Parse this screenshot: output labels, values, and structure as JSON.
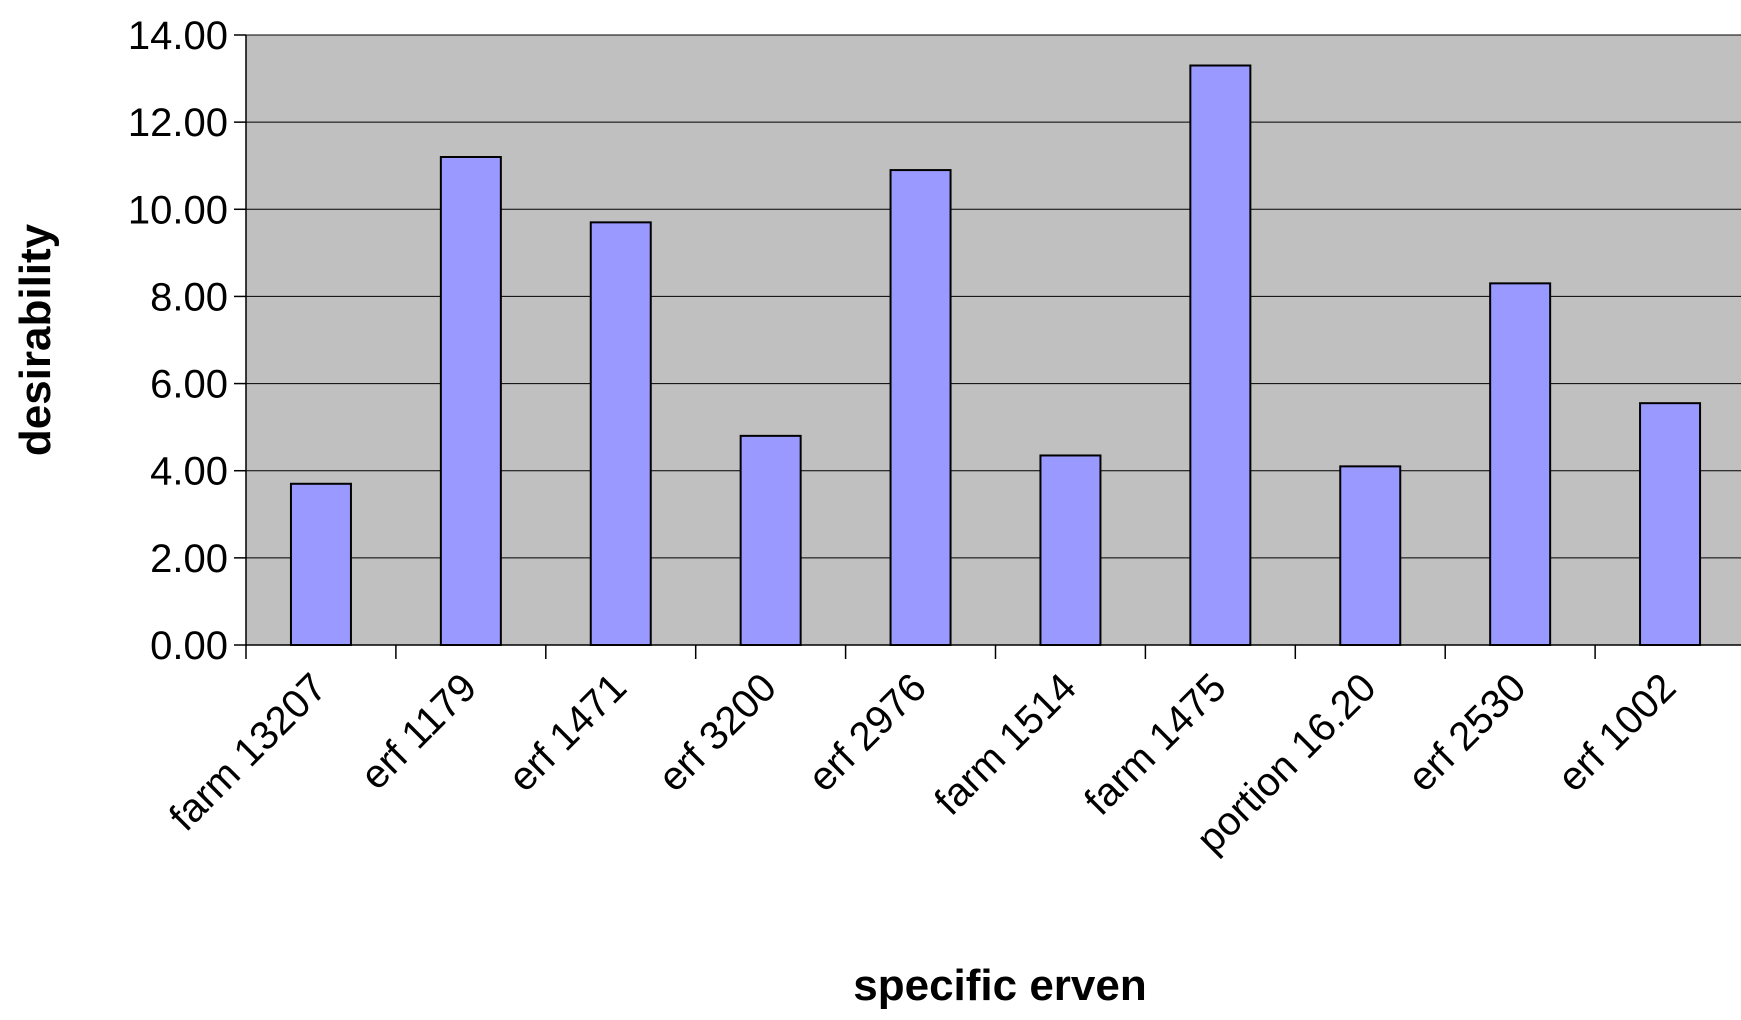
{
  "chart_data": {
    "type": "bar",
    "title": "",
    "xlabel": "specific erven",
    "ylabel": "desirability",
    "categories": [
      "farm 13207",
      "erf 1179",
      "erf 1471",
      "erf 3200",
      "erf 2976",
      "farm 1514",
      "farm 1475",
      "portion 16.20",
      "erf 2530",
      "erf 1002"
    ],
    "values": [
      3.7,
      11.2,
      9.7,
      4.8,
      10.9,
      4.35,
      13.3,
      4.1,
      8.3,
      5.55
    ],
    "ylim": [
      0,
      14
    ],
    "yticks": [
      "0.00",
      "2.00",
      "4.00",
      "6.00",
      "8.00",
      "10.00",
      "12.00",
      "14.00"
    ],
    "grid": true,
    "legend": "none",
    "colors": {
      "bar_fill": "#9999ff",
      "bar_stroke": "#000000",
      "plot_background": "#c0c0c0",
      "gridline": "#000000"
    }
  }
}
